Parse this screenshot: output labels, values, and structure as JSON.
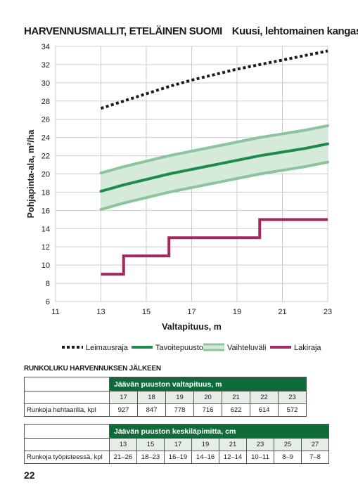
{
  "header": {
    "title": "HARVENNUSMALLIT, ETELÄINEN SUOMI",
    "subtitle": "Kuusi, lehtomainen kangas"
  },
  "chart_data": {
    "type": "line",
    "xlabel": "Valtapituus, m",
    "ylabel": "Pohjapinta-ala, m²/ha",
    "xlim": [
      11,
      23
    ],
    "ylim": [
      6,
      34
    ],
    "x_ticks": [
      11,
      13,
      15,
      17,
      19,
      21,
      23
    ],
    "y_ticks": [
      6,
      8,
      10,
      12,
      14,
      16,
      18,
      20,
      22,
      24,
      26,
      28,
      30,
      32,
      34
    ],
    "grid": true,
    "legend_position": "bottom",
    "series": [
      {
        "name": "Leimausraja",
        "style": "dotted",
        "color": "#1a1a1a",
        "x": [
          13,
          14,
          15,
          16,
          17,
          18,
          19,
          20,
          21,
          22,
          23
        ],
        "y": [
          27.2,
          28.0,
          28.8,
          29.6,
          30.3,
          30.9,
          31.5,
          32.0,
          32.5,
          33.0,
          33.5
        ]
      },
      {
        "name": "Tavoitepuusto",
        "style": "solid",
        "color": "#1e8a4c",
        "x": [
          13,
          14,
          15,
          16,
          17,
          18,
          19,
          20,
          21,
          22,
          23
        ],
        "y": [
          18.1,
          18.8,
          19.4,
          20.0,
          20.5,
          21.0,
          21.5,
          22.0,
          22.4,
          22.8,
          23.3
        ]
      },
      {
        "name": "Vaihteluväli",
        "style": "band",
        "color": "#8cc49e",
        "fill": "#d6eadb",
        "x": [
          13,
          14,
          15,
          16,
          17,
          18,
          19,
          20,
          21,
          22,
          23
        ],
        "upper": [
          20.1,
          20.8,
          21.4,
          22.0,
          22.5,
          23.0,
          23.5,
          24.0,
          24.4,
          24.8,
          25.3
        ],
        "lower": [
          16.1,
          16.8,
          17.4,
          18.0,
          18.5,
          19.0,
          19.5,
          20.0,
          20.4,
          20.8,
          21.3
        ]
      },
      {
        "name": "Lakiraja",
        "style": "step",
        "color": "#a3285f",
        "x": [
          13,
          14,
          14,
          16,
          16,
          20,
          20,
          23
        ],
        "y": [
          9,
          9,
          11,
          11,
          13,
          13,
          15,
          15
        ]
      }
    ],
    "colors": {
      "grid": "#cccccc",
      "axis": "#888888"
    }
  },
  "section_title": "RUNKOLUKU HARVENNUKSEN JÄLKEEN",
  "table1": {
    "header": "Jäävän puuston valtapituus, m",
    "columns": [
      "17",
      "18",
      "19",
      "20",
      "21",
      "22",
      "23"
    ],
    "row_label": "Runkoja hehtaarilla, kpl",
    "values": [
      "927",
      "847",
      "778",
      "716",
      "622",
      "614",
      "572"
    ]
  },
  "table2": {
    "header": "Jäävän puuston keskiläpimitta, cm",
    "columns": [
      "13",
      "15",
      "17",
      "19",
      "21",
      "23",
      "25",
      "27"
    ],
    "row_label": "Runkoja työpisteessä, kpl",
    "values": [
      "21–26",
      "18–23",
      "16–19",
      "14–16",
      "12–14",
      "10–11",
      "8–9",
      "7–8"
    ]
  },
  "page_number": "22"
}
